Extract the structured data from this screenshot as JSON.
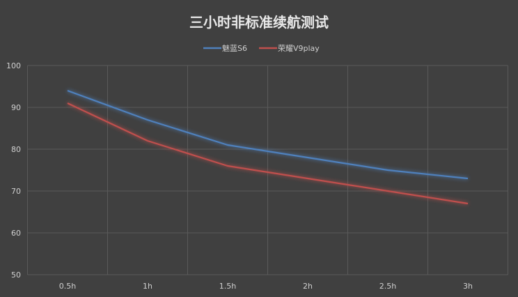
{
  "chart_data": {
    "type": "line",
    "title": "三小时非标准续航测试",
    "categories": [
      "0.5h",
      "1h",
      "1.5h",
      "2h",
      "2.5h",
      "3h"
    ],
    "series": [
      {
        "name": "魅蓝S6",
        "color": "#4f81bd",
        "values": [
          94,
          87,
          81,
          78,
          75,
          73
        ]
      },
      {
        "name": "荣耀V9play",
        "color": "#c0504d",
        "values": [
          91,
          82,
          76,
          73,
          70,
          67
        ]
      }
    ],
    "xlabel": "",
    "ylabel": "",
    "ylim": [
      50,
      100
    ],
    "yticks": [
      50,
      60,
      70,
      80,
      90,
      100
    ],
    "grid": true,
    "legend_position": "top",
    "background": "#404040"
  }
}
